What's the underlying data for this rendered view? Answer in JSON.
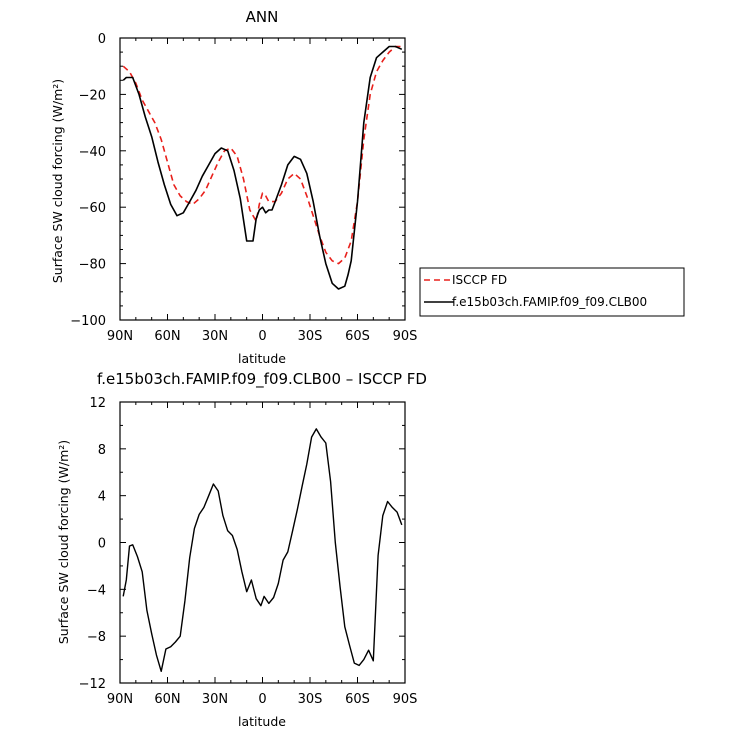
{
  "chart_data": [
    {
      "type": "line",
      "title": "ANN",
      "xlabel": "latitude",
      "ylabel": "Surface SW cloud forcing (W/m²)",
      "xlim": [
        90,
        -90
      ],
      "ylim": [
        -100,
        0
      ],
      "x_ticks": [
        "90N",
        "60N",
        "30N",
        "0",
        "30S",
        "60S",
        "90S"
      ],
      "y_ticks": [
        "0",
        "−20",
        "−40",
        "−60",
        "−80",
        "−100"
      ],
      "legend_position": "right",
      "series": [
        {
          "name": "ISCCP FD",
          "color": "#e8201b",
          "dash": "dashed",
          "x": [
            88,
            84,
            80,
            76,
            72,
            68,
            64,
            60,
            56,
            52,
            48,
            44,
            40,
            36,
            32,
            28,
            24,
            20,
            16,
            12,
            8,
            4,
            2,
            0,
            -2,
            -4,
            -8,
            -12,
            -16,
            -20,
            -24,
            -28,
            -32,
            -36,
            -40,
            -44,
            -48,
            -52,
            -56,
            -60,
            -64,
            -68,
            -72,
            -76,
            -80,
            -84,
            -88
          ],
          "values": [
            -10,
            -12,
            -16,
            -22,
            -26,
            -30,
            -36,
            -44,
            -52,
            -56,
            -58,
            -59,
            -57,
            -54,
            -49,
            -44,
            -40,
            -39,
            -42,
            -50,
            -61,
            -65,
            -59,
            -55,
            -56,
            -58,
            -58,
            -55,
            -50,
            -48,
            -50,
            -56,
            -63,
            -70,
            -76,
            -79,
            -80,
            -78,
            -72,
            -58,
            -36,
            -20,
            -12,
            -8,
            -5,
            -3,
            -3
          ]
        },
        {
          "name": "f.e15b03ch.FAMIP.f09_f09.CLB00",
          "color": "#000000",
          "dash": "solid",
          "x": [
            88,
            86,
            82,
            78,
            74,
            70,
            66,
            62,
            58,
            54,
            50,
            46,
            42,
            38,
            34,
            30,
            26,
            22,
            18,
            14,
            10,
            6,
            4,
            2,
            0,
            -2,
            -4,
            -6,
            -8,
            -12,
            -16,
            -20,
            -24,
            -28,
            -32,
            -36,
            -40,
            -44,
            -48,
            -52,
            -54,
            -56,
            -60,
            -64,
            -68,
            -72,
            -76,
            -80,
            -84,
            -88
          ],
          "values": [
            -15,
            -14,
            -14,
            -20,
            -28,
            -35,
            -44,
            -52,
            -59,
            -63,
            -62,
            -58,
            -54,
            -49,
            -45,
            -41,
            -39,
            -40,
            -47,
            -57,
            -72,
            -72,
            -64,
            -61,
            -60,
            -62,
            -61,
            -61,
            -58,
            -52,
            -45,
            -42,
            -43,
            -48,
            -58,
            -70,
            -80,
            -87,
            -89,
            -88,
            -84,
            -79,
            -58,
            -30,
            -14,
            -7,
            -5,
            -3,
            -3,
            -4
          ]
        }
      ]
    },
    {
      "type": "line",
      "title": "f.e15b03ch.FAMIP.f09_f09.CLB00 – ISCCP FD",
      "xlabel": "latitude",
      "ylabel": "Surface SW cloud forcing (W/m²)",
      "xlim": [
        90,
        -90
      ],
      "ylim": [
        -12,
        12
      ],
      "x_ticks": [
        "90N",
        "60N",
        "30N",
        "0",
        "30S",
        "60S",
        "90S"
      ],
      "y_ticks": [
        "12",
        "8",
        "4",
        "0",
        "−4",
        "−8",
        "−12"
      ],
      "series": [
        {
          "color": "#000000",
          "dash": "solid",
          "x": [
            88,
            86,
            84,
            82,
            79,
            76,
            73,
            70,
            67,
            64,
            61,
            58,
            55,
            52,
            49,
            46,
            43,
            40,
            37,
            34,
            31,
            28,
            25,
            22,
            19,
            16,
            13,
            10,
            7,
            4,
            1,
            -1,
            -4,
            -7,
            -10,
            -13,
            -16,
            -19,
            -22,
            -25,
            -28,
            -31,
            -34,
            -37,
            -40,
            -43,
            -46,
            -49,
            -52,
            -55,
            -58,
            -61,
            -64,
            -67,
            -70,
            -73,
            -76,
            -79,
            -82,
            -85,
            -88
          ],
          "values": [
            -4.6,
            -3.2,
            -0.3,
            -0.2,
            -1.2,
            -2.5,
            -5.8,
            -7.8,
            -9.6,
            -11,
            -9.1,
            -8.9,
            -8.5,
            -8,
            -5,
            -1.3,
            1.2,
            2.4,
            3,
            4,
            5,
            4.4,
            2.3,
            1,
            0.6,
            -0.6,
            -2.5,
            -4.2,
            -3.2,
            -4.8,
            -5.4,
            -4.6,
            -5.2,
            -4.7,
            -3.5,
            -1.5,
            -0.8,
            1,
            2.8,
            4.8,
            6.7,
            9,
            9.7,
            9,
            8.5,
            5.2,
            0,
            -3.8,
            -7.2,
            -8.8,
            -10.3,
            -10.5,
            -10,
            -9.2,
            -10.1,
            -1.1,
            2.3,
            3.5,
            3,
            2.6,
            1.5
          ]
        }
      ]
    }
  ]
}
